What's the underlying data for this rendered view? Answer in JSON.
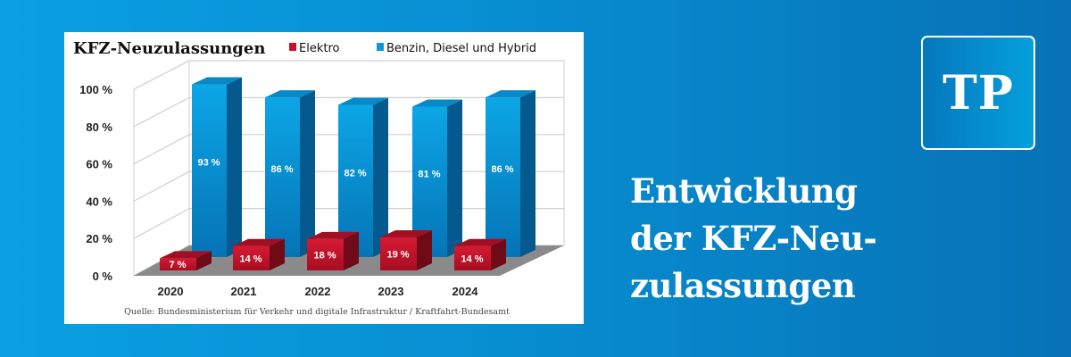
{
  "chart_data": {
    "type": "bar",
    "title": "KFZ-Neuzulassungen",
    "categories": [
      "2020",
      "2021",
      "2022",
      "2023",
      "2024"
    ],
    "series": [
      {
        "name": "Elektro",
        "color": "#c8102e",
        "values": [
          7,
          14,
          18,
          19,
          14
        ],
        "labels": [
          "7 %",
          "14 %",
          "18 %",
          "19 %",
          "14 %"
        ]
      },
      {
        "name": "Benzin, Diesel und Hybrid",
        "color": "#0a9ad9",
        "values": [
          93,
          86,
          82,
          81,
          86
        ],
        "labels": [
          "93 %",
          "86 %",
          "82 %",
          "81 %",
          "86 %"
        ]
      }
    ],
    "yticks": [
      "0 %",
      "20 %",
      "40 %",
      "60 %",
      "80 %",
      "100 %"
    ],
    "ylim": [
      0,
      100
    ],
    "grid": true,
    "legend": "top",
    "style": "3d",
    "source": "Quelle: Bundesministerium für Verkehr und digitale Infrastruktur / Kraftfahrt-Bundesamt"
  },
  "headline": {
    "lines": [
      "Entwicklung",
      "der KFZ-Neu-",
      "zulassungen"
    ]
  },
  "logo": {
    "text": "TP"
  }
}
